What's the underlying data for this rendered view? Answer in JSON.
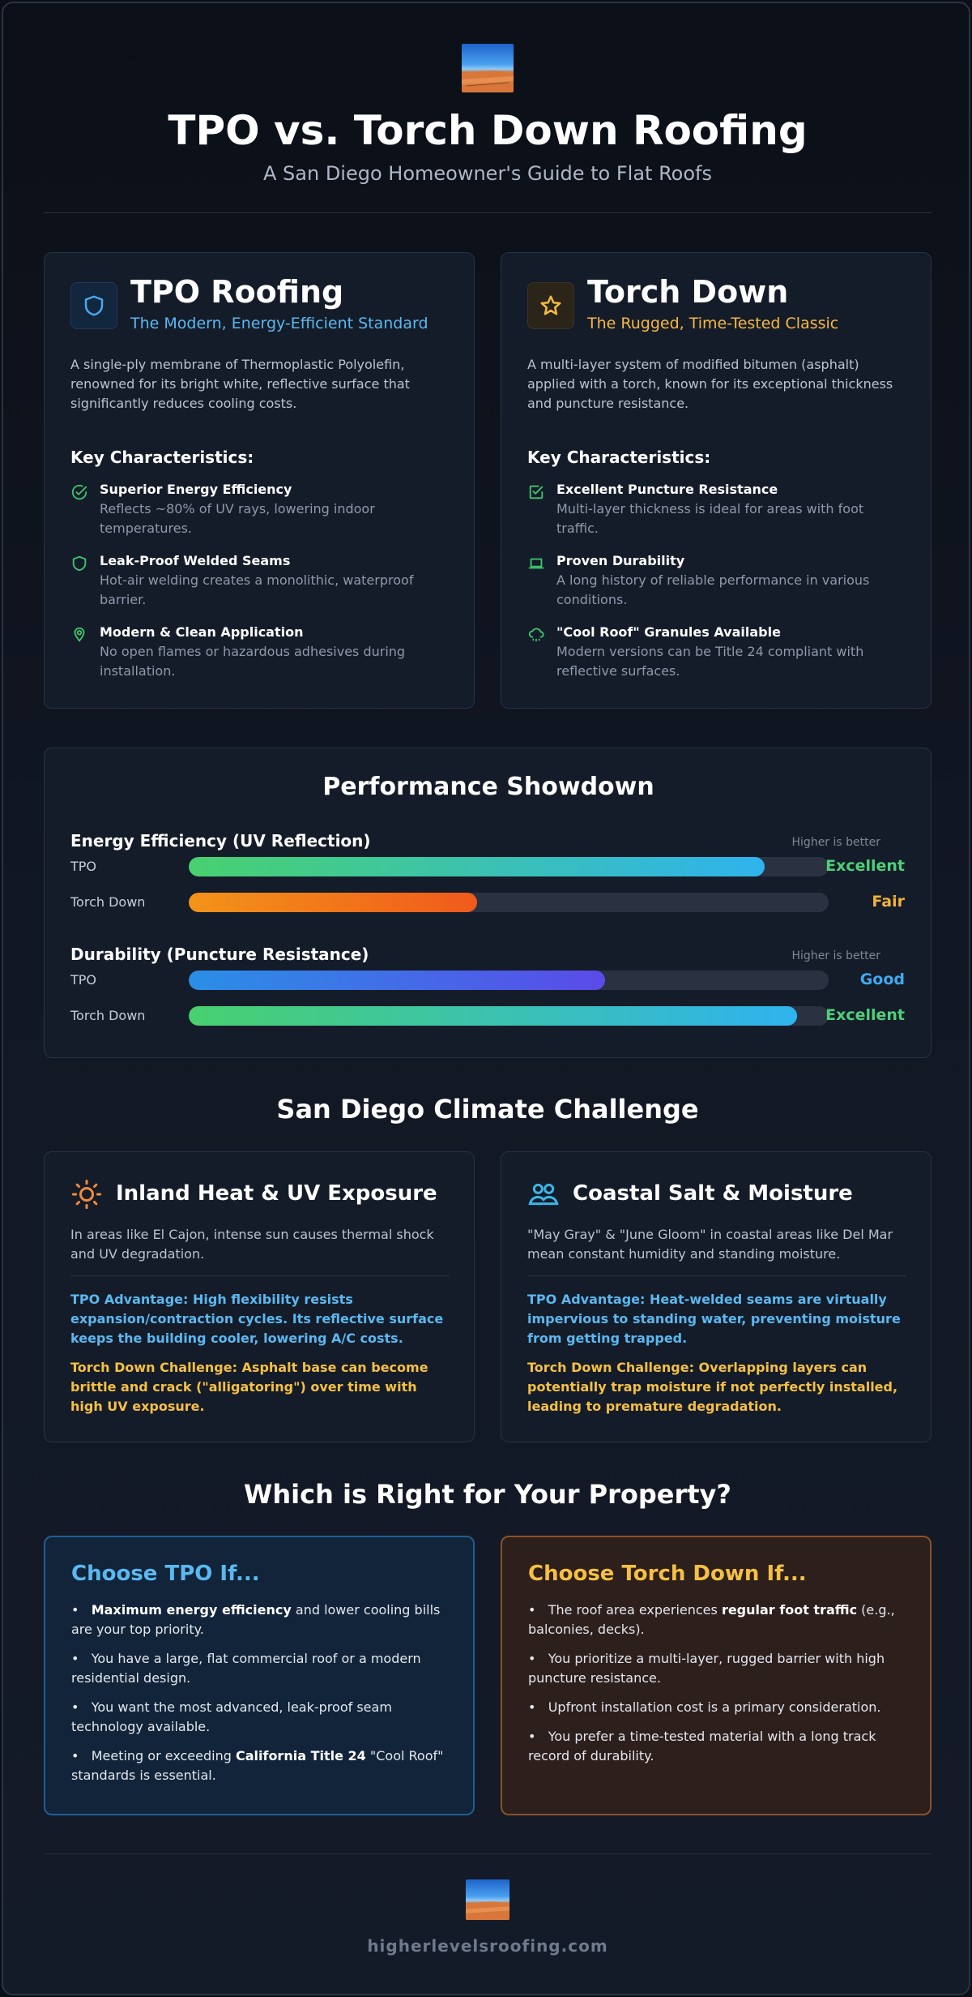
{
  "header": {
    "title": "TPO vs. Torch Down Roofing",
    "subtitle": "A San Diego Homeowner's Guide to Flat Roofs"
  },
  "tpo": {
    "title": "TPO Roofing",
    "subtitle": "The Modern, Energy-Efficient Standard",
    "description": "A single-ply membrane of Thermoplastic Polyolefin, renowned for its bright white, reflective surface that significantly reduces cooling costs.",
    "characteristics_heading": "Key Characteristics:",
    "items": [
      {
        "title": "Superior Energy Efficiency",
        "desc": "Reflects ~80% of UV rays, lowering indoor temperatures.",
        "icon": "check-circle-icon"
      },
      {
        "title": "Leak-Proof Welded Seams",
        "desc": "Hot-air welding creates a monolithic, waterproof barrier.",
        "icon": "shield-icon"
      },
      {
        "title": "Modern & Clean Application",
        "desc": "No open flames or hazardous adhesives during installation.",
        "icon": "location-icon"
      }
    ],
    "accent_color": "#5ab8f0",
    "icon": "shield-icon"
  },
  "torch": {
    "title": "Torch Down",
    "subtitle": "The Rugged, Time-Tested Classic",
    "description": "A multi-layer system of modified bitumen (asphalt) applied with a torch, known for its exceptional thickness and puncture resistance.",
    "characteristics_heading": "Key Characteristics:",
    "items": [
      {
        "title": "Excellent Puncture Resistance",
        "desc": "Multi-layer thickness is ideal for areas with foot traffic.",
        "icon": "check-square-icon"
      },
      {
        "title": "Proven Durability",
        "desc": "A long history of reliable performance in various conditions.",
        "icon": "laptop-icon"
      },
      {
        "title": "\"Cool Roof\" Granules Available",
        "desc": "Modern versions can be Title 24 compliant with reflective surfaces.",
        "icon": "cloud-drizzle-icon"
      }
    ],
    "accent_color": "#f5b942",
    "icon": "star-icon"
  },
  "performance": {
    "title": "Performance Showdown",
    "metrics": [
      {
        "name": "Energy Efficiency (UV Reflection)",
        "hint": "Higher is better",
        "rows": [
          {
            "label": "TPO",
            "value": 0.9,
            "rating": "Excellent",
            "rating_color": "#4ed07a",
            "gradient": [
              "#48d16f",
              "#2fb3ee"
            ]
          },
          {
            "label": "Torch Down",
            "value": 0.45,
            "rating": "Fair",
            "rating_color": "#f0b33a",
            "gradient": [
              "#f39419",
              "#f05a1c"
            ]
          }
        ]
      },
      {
        "name": "Durability (Puncture Resistance)",
        "hint": "Higher is better",
        "rows": [
          {
            "label": "TPO",
            "value": 0.65,
            "rating": "Good",
            "rating_color": "#3eaaf0",
            "gradient": [
              "#2a8fe6",
              "#5a4be8"
            ]
          },
          {
            "label": "Torch Down",
            "value": 0.95,
            "rating": "Excellent",
            "rating_color": "#4ed07a",
            "gradient": [
              "#48d16f",
              "#2fb3ee"
            ]
          }
        ]
      }
    ]
  },
  "climate": {
    "title": "San Diego Climate Challenge",
    "cards": [
      {
        "title": "Inland Heat & UV Exposure",
        "icon": "sun-icon",
        "desc": "In areas like El Cajon, intense sun causes thermal shock and UV degradation.",
        "tpo_adv": "TPO Advantage: High flexibility resists expansion/contraction cycles. Its reflective surface keeps the building cooler, lowering A/C costs.",
        "torch_chal": "Torch Down Challenge: Asphalt base can become brittle and crack (\"alligatoring\") over time with high UV exposure."
      },
      {
        "title": "Coastal Salt & Moisture",
        "icon": "people-icon",
        "desc": "\"May Gray\" & \"June Gloom\" in coastal areas like Del Mar mean constant humidity and standing moisture.",
        "tpo_adv": "TPO Advantage: Heat-welded seams are virtually impervious to standing water, preventing moisture from getting trapped.",
        "torch_chal": "Torch Down Challenge: Overlapping layers can potentially trap moisture if not perfectly installed, leading to premature degradation."
      }
    ]
  },
  "choose": {
    "title": "Which is Right for Your Property?",
    "tpo": {
      "title": "Choose TPO If...",
      "bullets": [
        {
          "pre": "",
          "bold": "Maximum energy efficiency",
          "post": " and lower cooling bills are your top priority."
        },
        {
          "pre": "You have a large, flat commercial roof or a modern residential design.",
          "bold": "",
          "post": ""
        },
        {
          "pre": "You want the most advanced, leak-proof seam technology available.",
          "bold": "",
          "post": ""
        },
        {
          "pre": "Meeting or exceeding ",
          "bold": "California Title 24",
          "post": " \"Cool Roof\" standards is essential."
        }
      ]
    },
    "torch": {
      "title": "Choose Torch Down If...",
      "bullets": [
        {
          "pre": "The roof area experiences ",
          "bold": "regular foot traffic",
          "post": " (e.g., balconies, decks)."
        },
        {
          "pre": "You prioritize a multi-layer, rugged barrier with high puncture resistance.",
          "bold": "",
          "post": ""
        },
        {
          "pre": "Upfront installation cost is a primary consideration.",
          "bold": "",
          "post": ""
        },
        {
          "pre": "You prefer a time-tested material with a long track record of durability.",
          "bold": "",
          "post": ""
        }
      ]
    }
  },
  "footer": {
    "url": "higherlevelsroofing.com"
  }
}
